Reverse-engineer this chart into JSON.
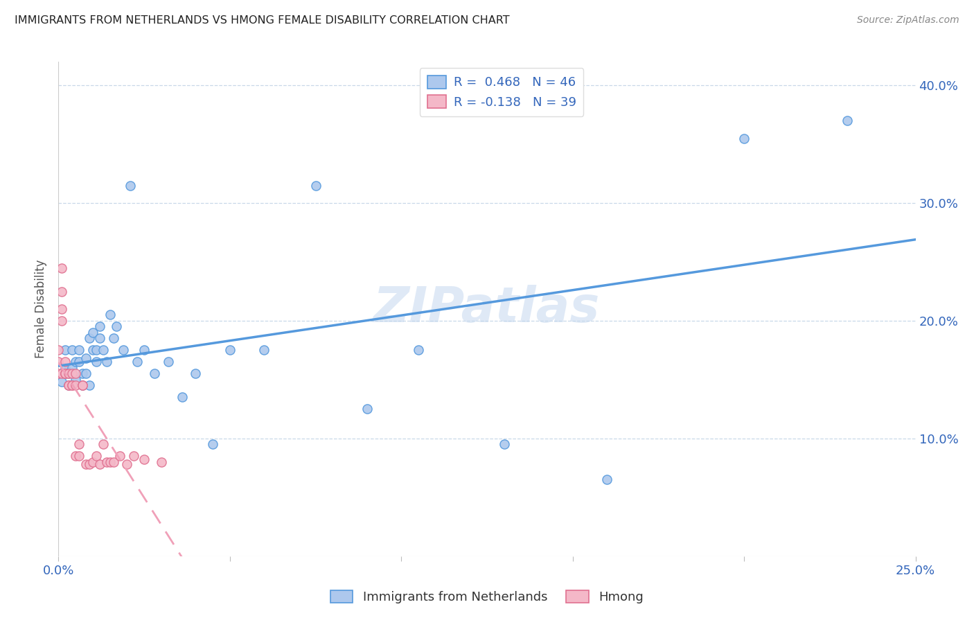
{
  "title": "IMMIGRANTS FROM NETHERLANDS VS HMONG FEMALE DISABILITY CORRELATION CHART",
  "source": "Source: ZipAtlas.com",
  "ylabel": "Female Disability",
  "yticks": [
    0.0,
    0.1,
    0.2,
    0.3,
    0.4
  ],
  "ytick_labels": [
    "",
    "10.0%",
    "20.0%",
    "30.0%",
    "40.0%"
  ],
  "xlim": [
    0.0,
    0.25
  ],
  "ylim": [
    0.0,
    0.42
  ],
  "blue_R": 0.468,
  "blue_N": 46,
  "pink_R": -0.138,
  "pink_N": 39,
  "blue_color": "#adc8ed",
  "pink_color": "#f4b8c8",
  "blue_line_color": "#5599dd",
  "pink_line_color": "#f0a0b8",
  "watermark": "ZIPatlas",
  "legend_label_blue": "Immigrants from Netherlands",
  "legend_label_pink": "Hmong",
  "blue_x": [
    0.001,
    0.002,
    0.002,
    0.003,
    0.003,
    0.004,
    0.004,
    0.005,
    0.005,
    0.006,
    0.006,
    0.007,
    0.007,
    0.008,
    0.008,
    0.009,
    0.009,
    0.01,
    0.01,
    0.011,
    0.011,
    0.012,
    0.012,
    0.013,
    0.014,
    0.015,
    0.016,
    0.017,
    0.019,
    0.021,
    0.023,
    0.025,
    0.028,
    0.032,
    0.036,
    0.04,
    0.045,
    0.05,
    0.06,
    0.075,
    0.09,
    0.105,
    0.13,
    0.16,
    0.2,
    0.23
  ],
  "blue_y": [
    0.148,
    0.16,
    0.175,
    0.145,
    0.155,
    0.16,
    0.175,
    0.165,
    0.15,
    0.175,
    0.165,
    0.145,
    0.155,
    0.155,
    0.168,
    0.145,
    0.185,
    0.19,
    0.175,
    0.165,
    0.175,
    0.195,
    0.185,
    0.175,
    0.165,
    0.205,
    0.185,
    0.195,
    0.175,
    0.315,
    0.165,
    0.175,
    0.155,
    0.165,
    0.135,
    0.155,
    0.095,
    0.175,
    0.175,
    0.315,
    0.125,
    0.175,
    0.095,
    0.065,
    0.355,
    0.37
  ],
  "pink_x": [
    0.0,
    0.0,
    0.0,
    0.001,
    0.001,
    0.001,
    0.001,
    0.001,
    0.002,
    0.002,
    0.002,
    0.002,
    0.003,
    0.003,
    0.003,
    0.004,
    0.004,
    0.004,
    0.005,
    0.005,
    0.005,
    0.006,
    0.006,
    0.007,
    0.007,
    0.008,
    0.009,
    0.01,
    0.011,
    0.012,
    0.013,
    0.014,
    0.015,
    0.016,
    0.018,
    0.02,
    0.022,
    0.025,
    0.03
  ],
  "pink_y": [
    0.155,
    0.165,
    0.175,
    0.245,
    0.225,
    0.21,
    0.2,
    0.155,
    0.155,
    0.165,
    0.155,
    0.155,
    0.145,
    0.155,
    0.145,
    0.155,
    0.145,
    0.145,
    0.145,
    0.155,
    0.085,
    0.085,
    0.095,
    0.145,
    0.145,
    0.078,
    0.078,
    0.08,
    0.085,
    0.078,
    0.095,
    0.08,
    0.08,
    0.08,
    0.085,
    0.078,
    0.085,
    0.082,
    0.08
  ],
  "pink_line_xlim": [
    0.0,
    0.135
  ]
}
